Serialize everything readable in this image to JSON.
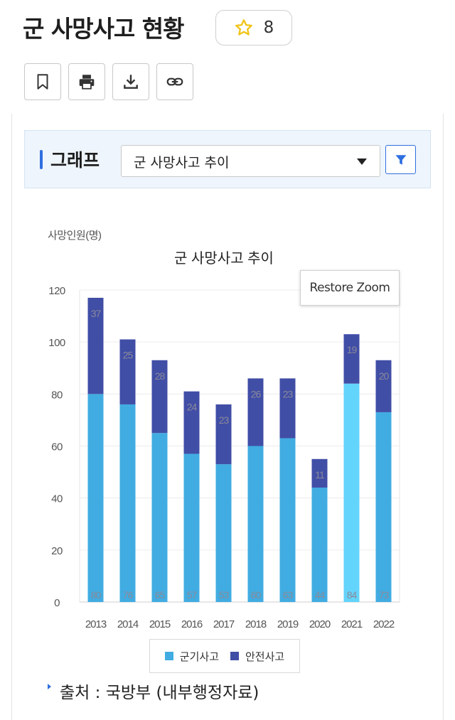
{
  "page": {
    "title": "군 사망사고 현황"
  },
  "favorite": {
    "count": "8",
    "icon": "star-outline-icon",
    "color": "#f0c419"
  },
  "toolbar": {
    "buttons": [
      {
        "icon": "bookmark-icon"
      },
      {
        "icon": "print-icon"
      },
      {
        "icon": "download-icon"
      },
      {
        "icon": "link-icon"
      }
    ]
  },
  "graph_panel": {
    "title": "그래프",
    "select_value": "군 사망사고 추이",
    "filter_icon": "filter-icon",
    "accent_color": "#2f6fe0"
  },
  "restore_zoom": {
    "label": "Restore Zoom"
  },
  "chart_data": {
    "type": "bar",
    "stacked": true,
    "title": "군 사망사고 추이",
    "ylabel": "사망인원(명)",
    "xlabel": "",
    "categories": [
      "2013",
      "2014",
      "2015",
      "2016",
      "2017",
      "2018",
      "2019",
      "2020",
      "2021",
      "2022"
    ],
    "series": [
      {
        "name": "군기사고",
        "color": "#41ace1",
        "values": [
          80,
          76,
          65,
          57,
          53,
          60,
          63,
          44,
          84,
          73
        ]
      },
      {
        "name": "안전사고",
        "color": "#414ea6",
        "values": [
          37,
          25,
          28,
          24,
          23,
          26,
          23,
          11,
          19,
          20
        ]
      }
    ],
    "highlight": {
      "index": 8,
      "series": 0,
      "color": "#63d4fb"
    },
    "ylim": [
      0,
      120
    ],
    "yticks": [
      0,
      20,
      40,
      60,
      80,
      100,
      120
    ],
    "grid": true,
    "legend": "bottom"
  },
  "source": {
    "text": "출처 : 국방부 (내부행정자료)"
  }
}
